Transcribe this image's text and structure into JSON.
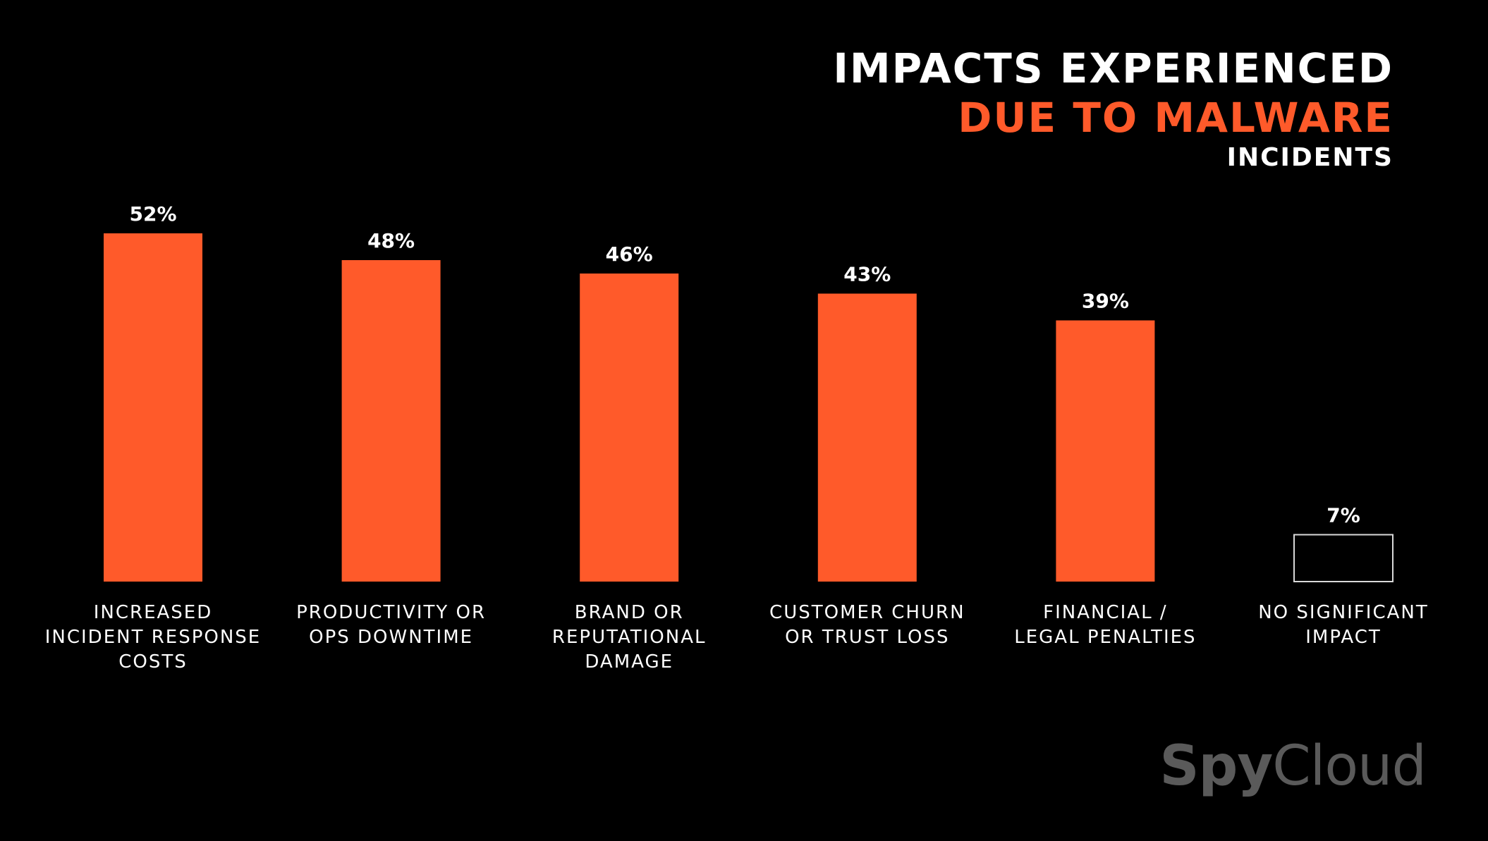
{
  "title": {
    "line1": "IMPACTS EXPERIENCED",
    "line2": "DUE TO MALWARE",
    "line3": "INCIDENTS"
  },
  "logo": {
    "part1": "Spy",
    "part2": "Cloud"
  },
  "colors": {
    "background": "#000000",
    "accent": "#ff5a2a",
    "text": "#ffffff",
    "outline_bar": "#d9d9d9",
    "logo": "#5a5a5a"
  },
  "chart_data": {
    "type": "bar",
    "categories": [
      "INCREASED INCIDENT RESPONSE COSTS",
      "PRODUCTIVITY OR OPS DOWNTIME",
      "BRAND OR REPUTATIONAL DAMAGE",
      "CUSTOMER CHURN OR TRUST LOSS",
      "FINANCIAL / LEGAL PENALTIES",
      "NO SIGNIFICANT IMPACT"
    ],
    "category_lines": [
      [
        "INCREASED",
        "INCIDENT RESPONSE",
        "COSTS"
      ],
      [
        "PRODUCTIVITY OR",
        "OPS DOWNTIME"
      ],
      [
        "BRAND OR",
        "REPUTATIONAL",
        "DAMAGE"
      ],
      [
        "CUSTOMER CHURN",
        "OR TRUST LOSS"
      ],
      [
        "FINANCIAL /",
        "LEGAL PENALTIES"
      ],
      [
        "NO SIGNIFICANT",
        "IMPACT"
      ]
    ],
    "values": [
      52,
      48,
      46,
      43,
      39,
      7
    ],
    "value_labels": [
      "52%",
      "48%",
      "46%",
      "43%",
      "39%",
      "7%"
    ],
    "bar_styles": [
      "filled",
      "filled",
      "filled",
      "filled",
      "filled",
      "outline"
    ],
    "ylim": [
      0,
      52
    ],
    "grid": false,
    "legend": "none",
    "xlabel": "",
    "ylabel": ""
  }
}
